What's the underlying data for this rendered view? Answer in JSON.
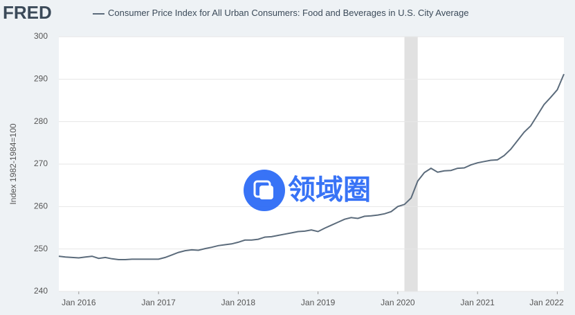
{
  "brand": "FRED",
  "watermark": "领域圈",
  "chart_data": {
    "type": "line",
    "title": "Consumer Price Index for All Urban Consumers: Food and Beverages in U.S. City Average",
    "y_label": "Index 1982-1984=100",
    "x": [
      "2015-10",
      "2015-11",
      "2015-12",
      "2016-01",
      "2016-02",
      "2016-03",
      "2016-04",
      "2016-05",
      "2016-06",
      "2016-07",
      "2016-08",
      "2016-09",
      "2016-10",
      "2016-11",
      "2016-12",
      "2017-01",
      "2017-02",
      "2017-03",
      "2017-04",
      "2017-05",
      "2017-06",
      "2017-07",
      "2017-08",
      "2017-09",
      "2017-10",
      "2017-11",
      "2017-12",
      "2018-01",
      "2018-02",
      "2018-03",
      "2018-04",
      "2018-05",
      "2018-06",
      "2018-07",
      "2018-08",
      "2018-09",
      "2018-10",
      "2018-11",
      "2018-12",
      "2019-01",
      "2019-02",
      "2019-03",
      "2019-04",
      "2019-05",
      "2019-06",
      "2019-07",
      "2019-08",
      "2019-09",
      "2019-10",
      "2019-11",
      "2019-12",
      "2020-01",
      "2020-02",
      "2020-03",
      "2020-04",
      "2020-05",
      "2020-06",
      "2020-07",
      "2020-08",
      "2020-09",
      "2020-10",
      "2020-11",
      "2020-12",
      "2021-01",
      "2021-02",
      "2021-03",
      "2021-04",
      "2021-05",
      "2021-06",
      "2021-07",
      "2021-08",
      "2021-09",
      "2021-10",
      "2021-11",
      "2021-12",
      "2022-01",
      "2022-02"
    ],
    "series": [
      {
        "name": "Consumer Price Index for All Urban Consumers: Food and Beverages in U.S. City Average",
        "color": "#5b6b7b",
        "values": [
          248.3,
          248.1,
          248.0,
          247.9,
          248.1,
          248.3,
          247.8,
          248.0,
          247.7,
          247.5,
          247.5,
          247.6,
          247.6,
          247.6,
          247.6,
          247.6,
          248.0,
          248.6,
          249.2,
          249.6,
          249.8,
          249.7,
          250.1,
          250.4,
          250.8,
          251.0,
          251.2,
          251.6,
          252.1,
          252.1,
          252.3,
          252.8,
          252.9,
          253.2,
          253.5,
          253.8,
          254.1,
          254.2,
          254.5,
          254.1,
          254.9,
          255.6,
          256.3,
          257.0,
          257.4,
          257.2,
          257.7,
          257.8,
          258.0,
          258.3,
          258.8,
          260.0,
          260.5,
          262.0,
          266.0,
          268.0,
          269.0,
          268.1,
          268.4,
          268.5,
          269.0,
          269.1,
          269.8,
          270.3,
          270.6,
          270.9,
          271.0,
          272.0,
          273.5,
          275.5,
          277.5,
          279.0,
          281.5,
          284.0,
          285.7,
          287.5,
          291.2
        ]
      }
    ],
    "recession": [
      "2020-02",
      "2020-04"
    ],
    "xlim": [
      "2015-10",
      "2022-02"
    ],
    "xticks": [
      {
        "value": "2016-01",
        "label": "Jan 2016"
      },
      {
        "value": "2017-01",
        "label": "Jan 2017"
      },
      {
        "value": "2018-01",
        "label": "Jan 2018"
      },
      {
        "value": "2019-01",
        "label": "Jan 2019"
      },
      {
        "value": "2020-01",
        "label": "Jan 2020"
      },
      {
        "value": "2021-01",
        "label": "Jan 2021"
      },
      {
        "value": "2022-01",
        "label": "Jan 2022"
      }
    ],
    "ylim": [
      240,
      300
    ],
    "yticks": [
      240,
      250,
      260,
      270,
      280,
      290,
      300
    ],
    "grid": true
  }
}
